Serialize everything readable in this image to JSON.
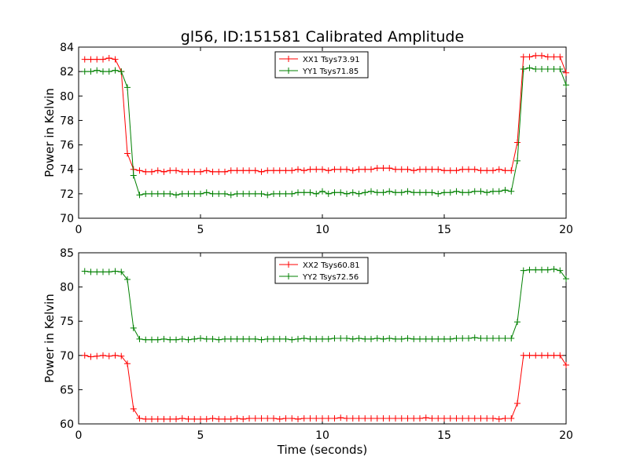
{
  "title": "gl56, ID:151581 Calibrated Amplitude",
  "chart_data": [
    {
      "type": "line",
      "xlabel": "",
      "ylabel": "Power in Kelvin",
      "xlim": [
        0,
        20
      ],
      "ylim": [
        70,
        84
      ],
      "xticks": [
        0,
        5,
        10,
        15,
        20
      ],
      "yticks": [
        70,
        72,
        74,
        76,
        78,
        80,
        82,
        84
      ],
      "legend_position": "top-center",
      "series": [
        {
          "name": "XX1 Tsys73.91",
          "color": "#ff0000",
          "x": [
            0.25,
            0.5,
            0.75,
            1.0,
            1.25,
            1.5,
            1.75,
            2.0,
            2.25,
            2.5,
            2.75,
            3.0,
            3.25,
            3.5,
            3.75,
            4.0,
            4.25,
            4.5,
            4.75,
            5.0,
            5.25,
            5.5,
            5.75,
            6.0,
            6.25,
            6.5,
            6.75,
            7.0,
            7.25,
            7.5,
            7.75,
            8.0,
            8.25,
            8.5,
            8.75,
            9.0,
            9.25,
            9.5,
            9.75,
            10.0,
            10.25,
            10.5,
            10.75,
            11.0,
            11.25,
            11.5,
            11.75,
            12.0,
            12.25,
            12.5,
            12.75,
            13.0,
            13.25,
            13.5,
            13.75,
            14.0,
            14.25,
            14.5,
            14.75,
            15.0,
            15.25,
            15.5,
            15.75,
            16.0,
            16.25,
            16.5,
            16.75,
            17.0,
            17.25,
            17.5,
            17.75,
            18.0,
            18.25,
            18.5,
            18.75,
            19.0,
            19.25,
            19.5,
            19.75,
            20.0
          ],
          "y": [
            83.0,
            83.0,
            83.0,
            83.0,
            83.1,
            83.0,
            82.0,
            75.3,
            74.0,
            73.9,
            73.8,
            73.8,
            73.9,
            73.8,
            73.9,
            73.9,
            73.8,
            73.8,
            73.8,
            73.8,
            73.9,
            73.8,
            73.8,
            73.8,
            73.9,
            73.9,
            73.9,
            73.9,
            73.9,
            73.8,
            73.9,
            73.9,
            73.9,
            73.9,
            73.9,
            74.0,
            73.9,
            74.0,
            74.0,
            74.0,
            73.9,
            74.0,
            74.0,
            74.0,
            73.9,
            74.0,
            74.0,
            74.0,
            74.1,
            74.1,
            74.1,
            74.0,
            74.0,
            74.0,
            73.9,
            74.0,
            74.0,
            74.0,
            74.0,
            73.9,
            73.9,
            73.9,
            74.0,
            74.0,
            74.0,
            73.9,
            73.9,
            73.9,
            74.0,
            73.9,
            73.9,
            76.2,
            83.2,
            83.2,
            83.3,
            83.3,
            83.2,
            83.2,
            83.2,
            81.9
          ]
        },
        {
          "name": "YY1 Tsys71.85",
          "color": "#008000",
          "x": [
            0.25,
            0.5,
            0.75,
            1.0,
            1.25,
            1.5,
            1.75,
            2.0,
            2.25,
            2.5,
            2.75,
            3.0,
            3.25,
            3.5,
            3.75,
            4.0,
            4.25,
            4.5,
            4.75,
            5.0,
            5.25,
            5.5,
            5.75,
            6.0,
            6.25,
            6.5,
            6.75,
            7.0,
            7.25,
            7.5,
            7.75,
            8.0,
            8.25,
            8.5,
            8.75,
            9.0,
            9.25,
            9.5,
            9.75,
            10.0,
            10.25,
            10.5,
            10.75,
            11.0,
            11.25,
            11.5,
            11.75,
            12.0,
            12.25,
            12.5,
            12.75,
            13.0,
            13.25,
            13.5,
            13.75,
            14.0,
            14.25,
            14.5,
            14.75,
            15.0,
            15.25,
            15.5,
            15.75,
            16.0,
            16.25,
            16.5,
            16.75,
            17.0,
            17.25,
            17.5,
            17.75,
            18.0,
            18.25,
            18.5,
            18.75,
            19.0,
            19.25,
            19.5,
            19.75,
            20.0
          ],
          "y": [
            82.0,
            82.0,
            82.1,
            82.0,
            82.0,
            82.1,
            82.0,
            80.7,
            73.5,
            71.9,
            72.0,
            72.0,
            72.0,
            72.0,
            72.0,
            71.9,
            72.0,
            72.0,
            72.0,
            72.0,
            72.1,
            72.0,
            72.0,
            72.0,
            71.9,
            72.0,
            72.0,
            72.0,
            72.0,
            72.0,
            71.9,
            72.0,
            72.0,
            72.0,
            72.0,
            72.1,
            72.1,
            72.1,
            72.0,
            72.2,
            72.0,
            72.1,
            72.1,
            72.0,
            72.1,
            72.0,
            72.1,
            72.2,
            72.1,
            72.1,
            72.2,
            72.1,
            72.1,
            72.2,
            72.1,
            72.1,
            72.1,
            72.1,
            72.0,
            72.1,
            72.1,
            72.2,
            72.1,
            72.1,
            72.2,
            72.2,
            72.1,
            72.2,
            72.2,
            72.3,
            72.2,
            74.7,
            82.2,
            82.3,
            82.2,
            82.2,
            82.2,
            82.2,
            82.2,
            80.9
          ]
        }
      ]
    },
    {
      "type": "line",
      "xlabel": "Time (seconds)",
      "ylabel": "Power in Kelvin",
      "xlim": [
        0,
        20
      ],
      "ylim": [
        60,
        85
      ],
      "xticks": [
        0,
        5,
        10,
        15,
        20
      ],
      "yticks": [
        60,
        65,
        70,
        75,
        80,
        85
      ],
      "legend_position": "top-center",
      "series": [
        {
          "name": "XX2 Tsys60.81",
          "color": "#ff0000",
          "x": [
            0.25,
            0.5,
            0.75,
            1.0,
            1.25,
            1.5,
            1.75,
            2.0,
            2.25,
            2.5,
            2.75,
            3.0,
            3.25,
            3.5,
            3.75,
            4.0,
            4.25,
            4.5,
            4.75,
            5.0,
            5.25,
            5.5,
            5.75,
            6.0,
            6.25,
            6.5,
            6.75,
            7.0,
            7.25,
            7.5,
            7.75,
            8.0,
            8.25,
            8.5,
            8.75,
            9.0,
            9.25,
            9.5,
            9.75,
            10.0,
            10.25,
            10.5,
            10.75,
            11.0,
            11.25,
            11.5,
            11.75,
            12.0,
            12.25,
            12.5,
            12.75,
            13.0,
            13.25,
            13.5,
            13.75,
            14.0,
            14.25,
            14.5,
            14.75,
            15.0,
            15.25,
            15.5,
            15.75,
            16.0,
            16.25,
            16.5,
            16.75,
            17.0,
            17.25,
            17.5,
            17.75,
            18.0,
            18.25,
            18.5,
            18.75,
            19.0,
            19.25,
            19.5,
            19.75,
            20.0
          ],
          "y": [
            70.0,
            69.8,
            69.9,
            70.0,
            69.9,
            70.0,
            69.9,
            68.8,
            62.2,
            60.8,
            60.7,
            60.7,
            60.7,
            60.7,
            60.7,
            60.7,
            60.8,
            60.7,
            60.7,
            60.7,
            60.7,
            60.8,
            60.7,
            60.7,
            60.7,
            60.8,
            60.7,
            60.8,
            60.8,
            60.8,
            60.8,
            60.8,
            60.7,
            60.8,
            60.8,
            60.7,
            60.8,
            60.8,
            60.8,
            60.8,
            60.8,
            60.8,
            60.9,
            60.8,
            60.8,
            60.8,
            60.8,
            60.8,
            60.8,
            60.8,
            60.8,
            60.8,
            60.8,
            60.8,
            60.8,
            60.8,
            60.9,
            60.8,
            60.8,
            60.8,
            60.8,
            60.8,
            60.8,
            60.8,
            60.8,
            60.8,
            60.8,
            60.8,
            60.7,
            60.8,
            60.8,
            63.0,
            70.0,
            70.0,
            70.0,
            70.0,
            70.0,
            70.0,
            70.0,
            68.6
          ]
        },
        {
          "name": "YY2 Tsys72.56",
          "color": "#008000",
          "x": [
            0.25,
            0.5,
            0.75,
            1.0,
            1.25,
            1.5,
            1.75,
            2.0,
            2.25,
            2.5,
            2.75,
            3.0,
            3.25,
            3.5,
            3.75,
            4.0,
            4.25,
            4.5,
            4.75,
            5.0,
            5.25,
            5.5,
            5.75,
            6.0,
            6.25,
            6.5,
            6.75,
            7.0,
            7.25,
            7.5,
            7.75,
            8.0,
            8.25,
            8.5,
            8.75,
            9.0,
            9.25,
            9.5,
            9.75,
            10.0,
            10.25,
            10.5,
            10.75,
            11.0,
            11.25,
            11.5,
            11.75,
            12.0,
            12.25,
            12.5,
            12.75,
            13.0,
            13.25,
            13.5,
            13.75,
            14.0,
            14.25,
            14.5,
            14.75,
            15.0,
            15.25,
            15.5,
            15.75,
            16.0,
            16.25,
            16.5,
            16.75,
            17.0,
            17.25,
            17.5,
            17.75,
            18.0,
            18.25,
            18.5,
            18.75,
            19.0,
            19.25,
            19.5,
            19.75,
            20.0
          ],
          "y": [
            82.3,
            82.2,
            82.2,
            82.2,
            82.2,
            82.3,
            82.2,
            81.1,
            74.0,
            72.4,
            72.3,
            72.3,
            72.3,
            72.4,
            72.3,
            72.3,
            72.4,
            72.3,
            72.4,
            72.5,
            72.4,
            72.4,
            72.3,
            72.4,
            72.4,
            72.4,
            72.4,
            72.4,
            72.4,
            72.3,
            72.4,
            72.4,
            72.4,
            72.4,
            72.3,
            72.4,
            72.5,
            72.4,
            72.4,
            72.4,
            72.4,
            72.5,
            72.5,
            72.5,
            72.4,
            72.5,
            72.4,
            72.4,
            72.5,
            72.4,
            72.5,
            72.4,
            72.4,
            72.5,
            72.4,
            72.4,
            72.4,
            72.4,
            72.4,
            72.4,
            72.4,
            72.5,
            72.5,
            72.5,
            72.6,
            72.5,
            72.5,
            72.5,
            72.5,
            72.5,
            72.5,
            74.9,
            82.4,
            82.5,
            82.5,
            82.5,
            82.5,
            82.6,
            82.4,
            81.2
          ]
        }
      ]
    }
  ]
}
